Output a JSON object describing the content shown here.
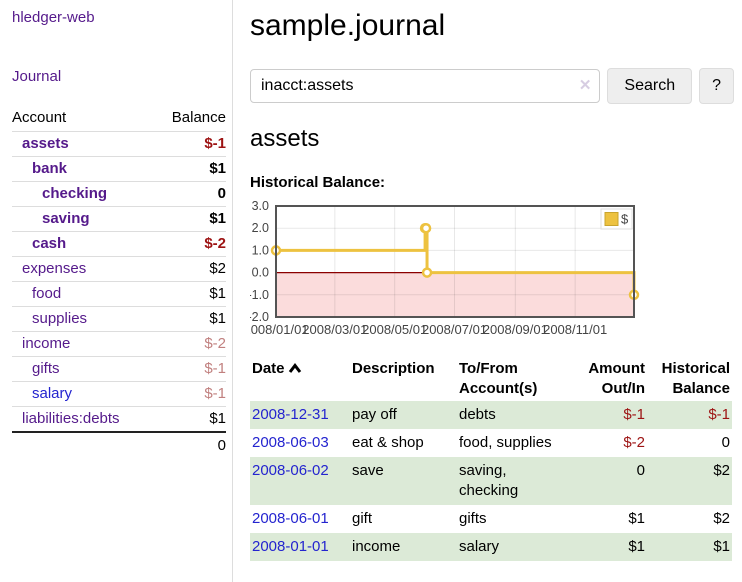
{
  "sidebar": {
    "brand": "hledger-web",
    "nav": [
      {
        "label": "Journal"
      }
    ],
    "accounts_table": {
      "headers": {
        "account": "Account",
        "balance": "Balance"
      },
      "rows": [
        {
          "name": "assets",
          "balance": "$-1",
          "level": 1,
          "bold": true,
          "balance_class": "neg",
          "link_class": "purple"
        },
        {
          "name": "bank",
          "balance": "$1",
          "level": 2,
          "bold": true,
          "balance_class": "",
          "link_class": "purple"
        },
        {
          "name": "checking",
          "balance": "0",
          "level": 3,
          "bold": true,
          "balance_class": "",
          "link_class": "purple"
        },
        {
          "name": "saving",
          "balance": "$1",
          "level": 3,
          "bold": true,
          "balance_class": "",
          "link_class": "purple"
        },
        {
          "name": "cash",
          "balance": "$-2",
          "level": 2,
          "bold": true,
          "balance_class": "neg",
          "link_class": "purple"
        },
        {
          "name": "expenses",
          "balance": "$2",
          "level": 1,
          "bold": false,
          "balance_class": "",
          "link_class": "purple"
        },
        {
          "name": "food",
          "balance": "$1",
          "level": 2,
          "bold": false,
          "balance_class": "",
          "link_class": "purple"
        },
        {
          "name": "supplies",
          "balance": "$1",
          "level": 2,
          "bold": false,
          "balance_class": "",
          "link_class": "purple"
        },
        {
          "name": "income",
          "balance": "$-2",
          "level": 1,
          "bold": false,
          "balance_class": "neg-faint",
          "link_class": "purple"
        },
        {
          "name": "gifts",
          "balance": "$-1",
          "level": 2,
          "bold": false,
          "balance_class": "neg-faint",
          "link_class": "purple"
        },
        {
          "name": "salary",
          "balance": "$-1",
          "level": 2,
          "bold": false,
          "balance_class": "neg-faint",
          "link_class": "blue"
        },
        {
          "name": "liabilities:debts",
          "balance": "$1",
          "level": 1,
          "bold": false,
          "balance_class": "",
          "link_class": "purple"
        }
      ],
      "total": "0"
    }
  },
  "header": {
    "title": "sample.journal"
  },
  "search": {
    "value": "inacct:assets",
    "clear_label": "✕",
    "button": "Search",
    "help_button": "?"
  },
  "account_page": {
    "title": "assets",
    "chart_label": "Historical Balance:"
  },
  "chart_data": {
    "type": "line",
    "title": "Historical Balance:",
    "xlabel": "",
    "ylabel": "",
    "step": true,
    "grid": true,
    "x_range": [
      "2008-01-01",
      "2008-12-31"
    ],
    "ylim": [
      -2.0,
      3.0
    ],
    "y_ticks": [
      3.0,
      2.0,
      1.0,
      0.0,
      -1.0,
      -2.0
    ],
    "x_ticks": [
      "2008/01/01",
      "2008/03/01",
      "2008/05/01",
      "2008/07/01",
      "2008/09/01",
      "2008/11/01"
    ],
    "series": [
      {
        "name": "$",
        "points": [
          [
            "2008-01-01",
            1
          ],
          [
            "2008-06-01",
            2
          ],
          [
            "2008-06-02",
            2
          ],
          [
            "2008-06-03",
            0
          ],
          [
            "2008-12-31",
            -1
          ]
        ]
      }
    ],
    "legend": {
      "label": "$",
      "position": "top-right"
    }
  },
  "transactions": {
    "headers": {
      "date": "Date",
      "sort_indicator": "ascending",
      "description": "Description",
      "accounts": "To/From Account(s)",
      "amount": "Amount Out/In",
      "balance": "Historical Balance"
    },
    "rows": [
      {
        "date": "2008-12-31",
        "description": "pay off",
        "accounts": "debts",
        "amount": "$-1",
        "balance": "$-1"
      },
      {
        "date": "2008-06-03",
        "description": "eat & shop",
        "accounts": "food, supplies",
        "amount": "$-2",
        "balance": "0"
      },
      {
        "date": "2008-06-02",
        "description": "save",
        "accounts": "saving, checking",
        "amount": "0",
        "balance": "$2"
      },
      {
        "date": "2008-06-01",
        "description": "gift",
        "accounts": "gifts",
        "amount": "$1",
        "balance": "$2"
      },
      {
        "date": "2008-01-01",
        "description": "income",
        "accounts": "salary",
        "amount": "$1",
        "balance": "$1"
      }
    ]
  },
  "colors": {
    "link_purple": "#551a8b",
    "link_blue": "#2424cf",
    "negative": "#9d1313",
    "negative_faint": "#c1807f",
    "row_stripe_green": "#dcead7",
    "chart_line": "#edc240",
    "chart_point_fill": "#ffffff",
    "chart_negative_region": "#fbdcdc",
    "chart_zero_line": "#8b0000",
    "chart_border": "#545454",
    "chart_tick_text": "#444444"
  }
}
